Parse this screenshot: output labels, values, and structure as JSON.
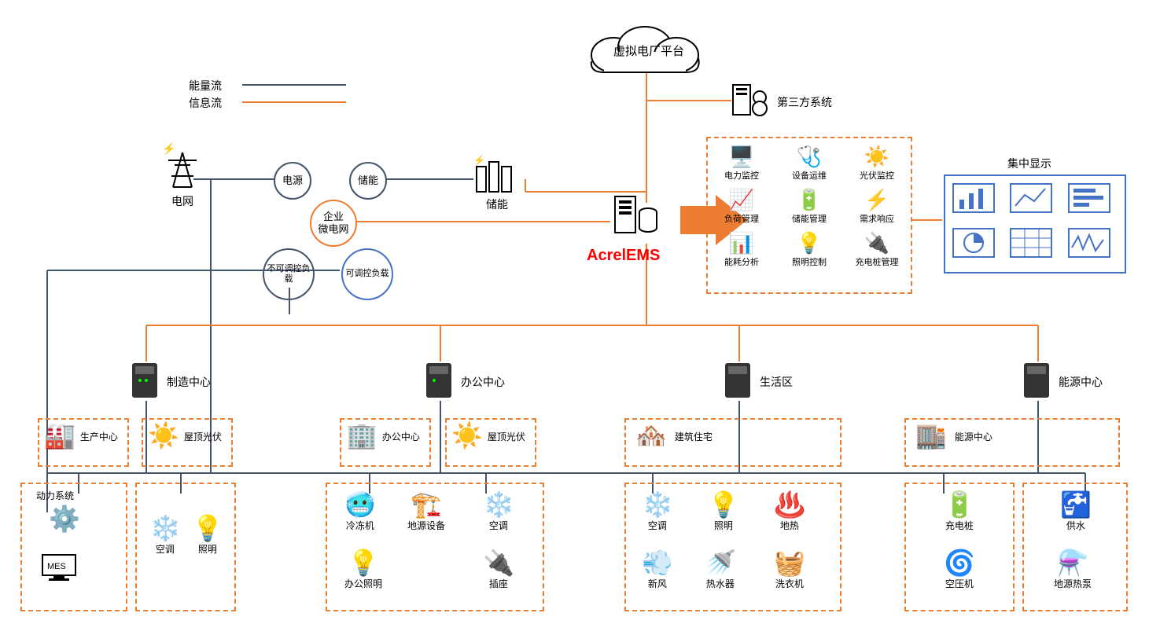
{
  "legend": {
    "energy": "能量流",
    "info": "信息流"
  },
  "colors": {
    "energy_line": "#44546a",
    "info_line": "#ed7d31",
    "circle_orange": "#ed7d31",
    "circle_blue": "#4472c4",
    "acrel_red": "#ff0000",
    "box_blue": "#4472c4"
  },
  "styles": {
    "line_width_energy": 2,
    "line_width_info": 2,
    "dash": "6,4",
    "label_fontsize": 14,
    "small_fontsize": 12,
    "title_fontsize": 20
  },
  "top": {
    "cloud": "虚拟电厂平台",
    "third_party": "第三方系统",
    "acrel": "AcrelEMS",
    "storage": "储能",
    "grid": "电网"
  },
  "circles": {
    "power": "电源",
    "storage": "储能",
    "micro": "企业\n微电网",
    "fixed": "不可调控负载",
    "adjust": "可调控负载"
  },
  "functions": {
    "title": "",
    "items": [
      "电力监控",
      "设备运维",
      "光伏监控",
      "负荷管理",
      "储能管理",
      "需求响应",
      "能耗分析",
      "照明控制",
      "充电桩管理"
    ]
  },
  "display": {
    "title": "集中显示"
  },
  "centers": {
    "mfg": "制造中心",
    "office": "办公中心",
    "life": "生活区",
    "energy": "能源中心"
  },
  "mfg": {
    "prod": "生产中心",
    "pv": "屋顶光伏",
    "power_sys": "动力系统",
    "mes": "MES",
    "ac": "空调",
    "light": "照明"
  },
  "office": {
    "bldg": "办公中心",
    "pv": "屋顶光伏",
    "chiller": "冷冻机",
    "ground": "地源设备",
    "ac": "空调",
    "light": "办公照明",
    "socket": "插座"
  },
  "life": {
    "bldg": "建筑住宅",
    "ac": "空调",
    "light": "照明",
    "heat": "地热",
    "fresh": "新风",
    "water_heater": "热水器",
    "washer": "洗衣机"
  },
  "ecenter": {
    "bldg": "能源中心",
    "charger": "充电桩",
    "water": "供水",
    "compressor": "空压机",
    "pump": "地源热泵"
  }
}
